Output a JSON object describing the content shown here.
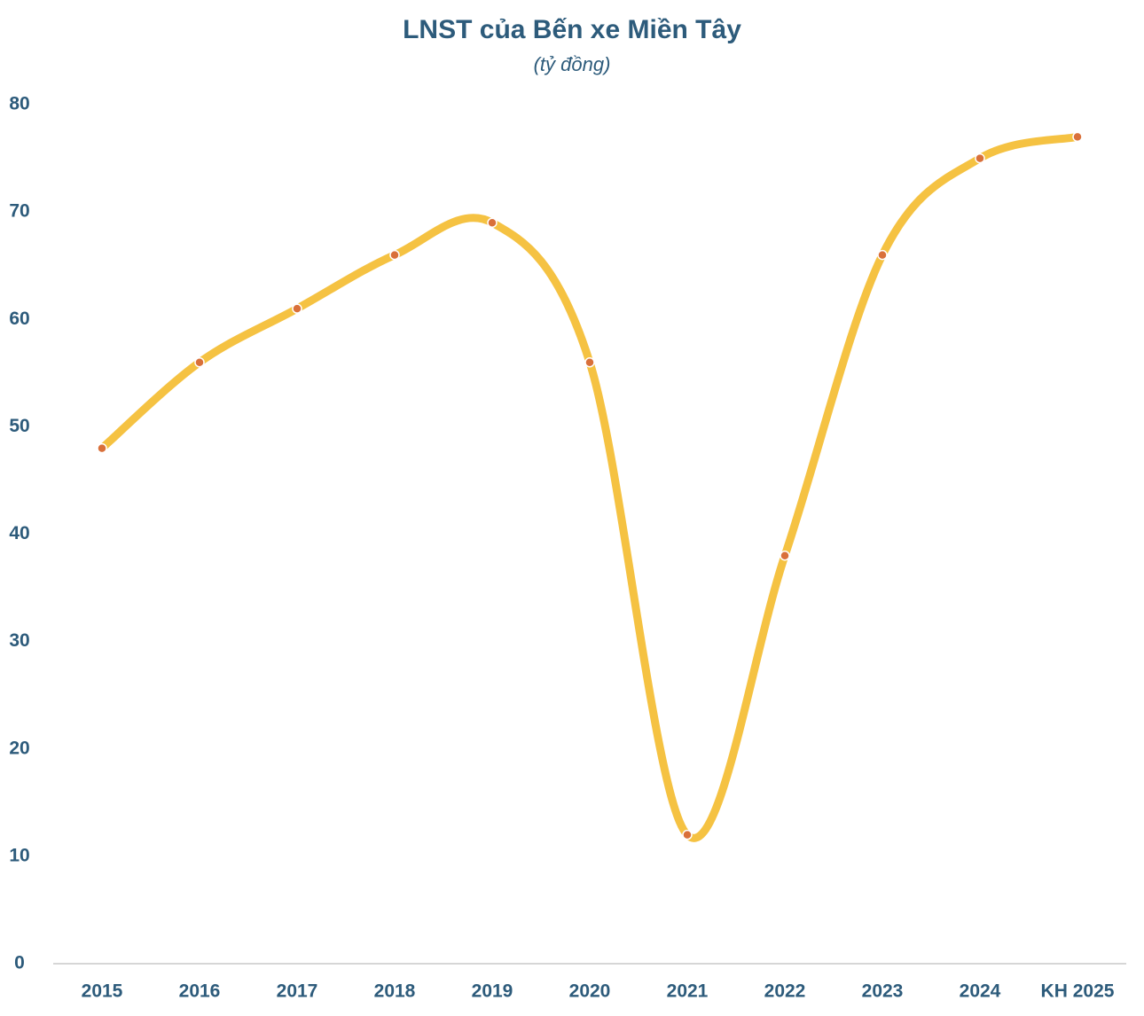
{
  "chart_data": {
    "type": "line",
    "title": "LNST của Bến xe Miền Tây",
    "subtitle": "(tỷ đồng)",
    "categories": [
      "2015",
      "2016",
      "2017",
      "2018",
      "2019",
      "2020",
      "2021",
      "2022",
      "2023",
      "2024",
      "KH 2025"
    ],
    "series": [
      {
        "name": "LNST",
        "color": "#f5c242",
        "marker_color": "#d9703a",
        "values": [
          48,
          56,
          61,
          66,
          69,
          56,
          12,
          38,
          66,
          75,
          77
        ]
      }
    ],
    "ylim": [
      0,
      80
    ],
    "yticks": [
      0,
      10,
      20,
      30,
      40,
      50,
      60,
      70,
      80
    ],
    "grid": false,
    "smooth": true
  }
}
